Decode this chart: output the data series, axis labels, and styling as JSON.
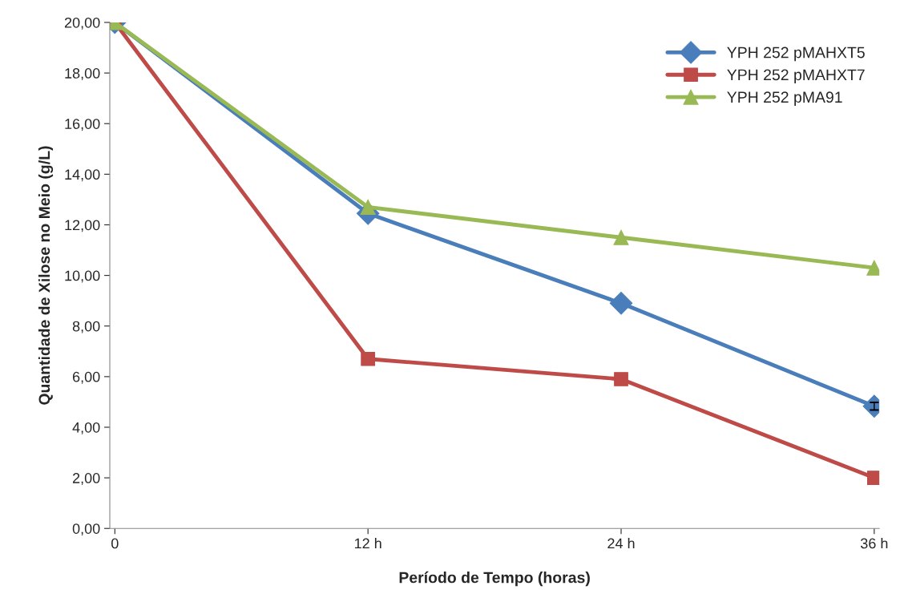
{
  "chart_data": {
    "type": "line",
    "xlabel": "Período de Tempo (horas)",
    "ylabel": "Quantidade de Xilose no Meio (g/L)",
    "categories": [
      "0",
      "12 h",
      "24 h",
      "36 h"
    ],
    "series": [
      {
        "name": "YPH 252 pMAHXT5",
        "color": "#4a7ebb",
        "marker": "diamond",
        "values": [
          20.0,
          12.45,
          8.9,
          4.83
        ],
        "errors": [
          null,
          null,
          null,
          0.15
        ]
      },
      {
        "name": "YPH 252 pMAHXT7",
        "color": "#be4b48",
        "marker": "square",
        "values": [
          20.0,
          6.7,
          5.9,
          2.0
        ]
      },
      {
        "name": "YPH 252 pMA91",
        "color": "#98b954",
        "marker": "triangle",
        "values": [
          20.0,
          12.7,
          11.5,
          10.3
        ]
      }
    ],
    "ylim": [
      0,
      20
    ],
    "yticks": [
      {
        "value": 0,
        "label": "0,00"
      },
      {
        "value": 2,
        "label": "2,00"
      },
      {
        "value": 4,
        "label": "4,00"
      },
      {
        "value": 6,
        "label": "6,00"
      },
      {
        "value": 8,
        "label": "8,00"
      },
      {
        "value": 10,
        "label": "10,00"
      },
      {
        "value": 12,
        "label": "12,00"
      },
      {
        "value": 14,
        "label": "14,00"
      },
      {
        "value": 16,
        "label": "16,00"
      },
      {
        "value": 18,
        "label": "18,00"
      },
      {
        "value": 20,
        "label": "20,00"
      }
    ],
    "grid": false,
    "legend": "top right",
    "line_style": "solid"
  }
}
